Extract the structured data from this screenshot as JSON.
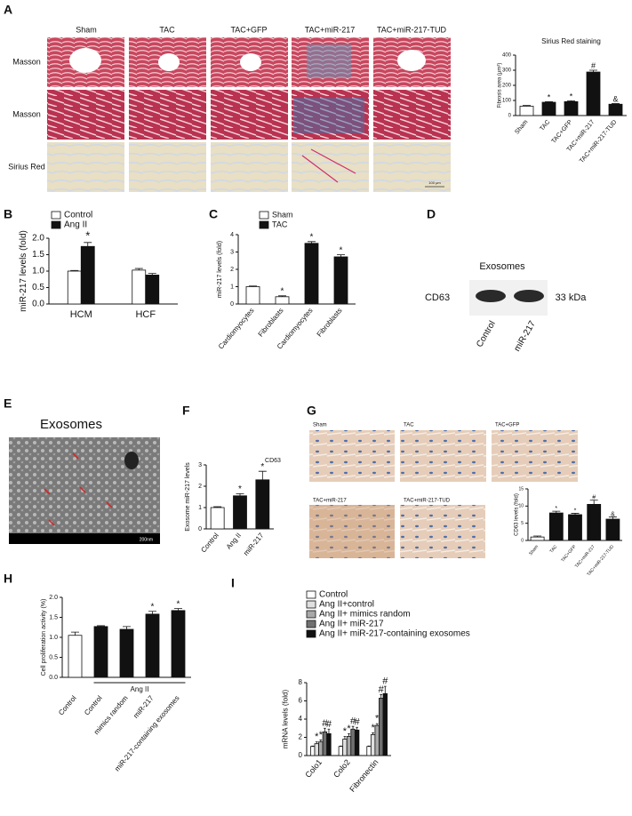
{
  "figure": {
    "panel_labels": [
      "A",
      "B",
      "C",
      "D",
      "E",
      "F",
      "G",
      "H",
      "I"
    ],
    "a_columns": [
      "Sham",
      "TAC",
      "TAC+GFP",
      "TAC+miR-217",
      "TAC+miR-217-TUD"
    ],
    "a_rows": [
      "Masson",
      "Masson",
      "Sirius Red"
    ],
    "a_scale": "100 μm",
    "d": {
      "title": "Exosomes",
      "band": "CD63",
      "size": "33 kDa",
      "lanes": [
        "Control",
        "miR-217"
      ]
    },
    "e": {
      "title": "Exosomes",
      "scale": "200nm"
    },
    "g": {
      "marker": "CD63",
      "top": [
        "Sham",
        "TAC",
        "TAC+GFP"
      ],
      "bottom": [
        "TAC+miR-217",
        "TAC+miR-217-TUD"
      ]
    }
  },
  "chart_data": [
    {
      "type": "bar",
      "title": "Sirius Red staining",
      "ylabel": "Fibrosis area (μm²)",
      "categories": [
        "Sham",
        "TAC",
        "TAC+GFP",
        "TAC+miR-217",
        "TAC+miR-217-TUD"
      ],
      "series": [
        {
          "colors": [
            "#ffffff",
            "#111111",
            "#111111",
            "#111111",
            "#111111"
          ],
          "values": [
            62,
            88,
            92,
            288,
            75
          ],
          "errors": [
            5,
            4,
            6,
            12,
            4
          ],
          "annotations": [
            null,
            "*",
            "*",
            "#",
            "&"
          ]
        }
      ],
      "ylim": [
        0,
        400
      ],
      "yticks": [
        0,
        100,
        200,
        300,
        400
      ]
    },
    {
      "type": "bar",
      "ylabel": "miR-217 levels (fold)",
      "categories": [
        "HCM",
        "HCF"
      ],
      "series": [
        {
          "name": "Control",
          "color": "#ffffff",
          "values": [
            1.0,
            1.03
          ],
          "errors": [
            0.02,
            0.05
          ],
          "annotations": [
            null,
            null
          ]
        },
        {
          "name": "Ang II",
          "color": "#111111",
          "values": [
            1.75,
            0.88
          ],
          "errors": [
            0.12,
            0.05
          ],
          "annotations": [
            "*",
            null
          ]
        }
      ],
      "ylim": [
        0,
        2
      ],
      "yticks": [
        {
          "value": 0,
          "label": "0.0"
        },
        {
          "value": 0.5,
          "label": "0.5"
        },
        {
          "value": 1,
          "label": "1.0"
        },
        {
          "value": 1.5,
          "label": "1.5"
        },
        {
          "value": 2,
          "label": "2.0"
        }
      ]
    },
    {
      "type": "bar",
      "ylabel": "miR-217 levels (fold)",
      "categories": [
        "Cardiomyocytes",
        "Fibroblasts",
        "Cardiomyocytes",
        "Fibroblasts"
      ],
      "series": [
        {
          "name": "Sham",
          "color": "#ffffff",
          "values": [
            1.0,
            0.42,
            null,
            null
          ],
          "errors": [
            0.04,
            0.05,
            null,
            null
          ],
          "annotations": [
            null,
            "*",
            null,
            null
          ]
        },
        {
          "name": "TAC",
          "color": "#111111",
          "values": [
            null,
            null,
            3.5,
            2.72
          ],
          "errors": [
            null,
            null,
            0.1,
            0.12
          ],
          "annotations": [
            null,
            null,
            "*",
            "*"
          ]
        }
      ],
      "ylim": [
        0,
        4
      ],
      "yticks": [
        0,
        1,
        2,
        3,
        4
      ]
    },
    {
      "type": "bar",
      "ylabel": "Exosome miR-217 levels",
      "categories": [
        "Control",
        "Ang II",
        "miR-217"
      ],
      "series": [
        {
          "colors": [
            "#ffffff",
            "#111111",
            "#111111"
          ],
          "values": [
            1.0,
            1.55,
            2.3
          ],
          "errors": [
            0.04,
            0.1,
            0.4
          ],
          "annotations": [
            null,
            "*",
            "*"
          ]
        }
      ],
      "ylim": [
        0,
        3
      ],
      "yticks": [
        0,
        1,
        2,
        3
      ]
    },
    {
      "type": "bar",
      "ylabel": "CD63 levels (fold)",
      "categories": [
        "Sham",
        "TAC",
        "TAC+GFP",
        "TAC+miR-217",
        "TAC+miR-217-TUD"
      ],
      "series": [
        {
          "colors": [
            "#ffffff",
            "#111111",
            "#111111",
            "#111111",
            "#111111"
          ],
          "values": [
            1.0,
            8.0,
            7.5,
            10.5,
            6.2
          ],
          "errors": [
            0.3,
            0.5,
            0.4,
            1.2,
            0.6
          ],
          "annotations": [
            null,
            "*",
            "*",
            "#",
            "&"
          ]
        }
      ],
      "ylim": [
        0,
        15
      ],
      "yticks": [
        0,
        5,
        10,
        15
      ]
    },
    {
      "type": "bar",
      "ylabel": "Cell proliferation activity (%)",
      "x_group_label": "Ang II",
      "categories": [
        "Control",
        "Control",
        "mimics random",
        "miR-217",
        "miR-217-containing exosomes"
      ],
      "series": [
        {
          "colors": [
            "#ffffff",
            "#111111",
            "#111111",
            "#111111",
            "#111111"
          ],
          "values": [
            1.05,
            1.27,
            1.2,
            1.58,
            1.67
          ],
          "errors": [
            0.08,
            0.02,
            0.07,
            0.07,
            0.05
          ],
          "annotations": [
            null,
            null,
            null,
            "*",
            "*"
          ]
        }
      ],
      "ylim": [
        0,
        2
      ],
      "yticks": [
        {
          "value": 0,
          "label": "0.0"
        },
        {
          "value": 0.5,
          "label": "0.5"
        },
        {
          "value": 1,
          "label": "1.0"
        },
        {
          "value": 1.5,
          "label": "1.5"
        },
        {
          "value": 2,
          "label": "2.0"
        }
      ]
    },
    {
      "type": "bar",
      "ylabel": "mRNA levels (fold)",
      "categories": [
        "Colo1",
        "Colo2",
        "Fibronectin"
      ],
      "series": [
        {
          "name": "Control",
          "color": "#ffffff",
          "values": [
            1,
            1,
            1
          ],
          "errors": [
            0.05,
            0.05,
            0.05
          ],
          "annotations": [
            null,
            null,
            null
          ]
        },
        {
          "name": "Ang II+control",
          "color": "#e0e0e0",
          "values": [
            1.3,
            1.8,
            2.3
          ],
          "errors": [
            0.2,
            0.3,
            0.2
          ],
          "annotations": [
            "*",
            "*",
            "*"
          ]
        },
        {
          "name": "Ang II+ mimics random",
          "color": "#a8a8a8",
          "values": [
            1.5,
            2.1,
            3.3
          ],
          "errors": [
            0.2,
            0.3,
            0.2
          ],
          "annotations": [
            "*",
            "*",
            "*"
          ]
        },
        {
          "name": "Ang II+ miR-217",
          "color": "#707070",
          "values": [
            2.6,
            2.9,
            6.3
          ],
          "errors": [
            0.4,
            0.3,
            0.4
          ],
          "annotations": [
            "#",
            "#",
            "#"
          ]
        },
        {
          "name": "Ang II+ miR-217-containing exosomes",
          "color": "#111111",
          "values": [
            2.4,
            2.8,
            6.8
          ],
          "errors": [
            0.5,
            0.3,
            0.8
          ],
          "annotations": [
            "#",
            "#",
            "#"
          ]
        }
      ],
      "ylim": [
        0,
        8
      ],
      "yticks": [
        0,
        2,
        4,
        6,
        8
      ]
    }
  ]
}
